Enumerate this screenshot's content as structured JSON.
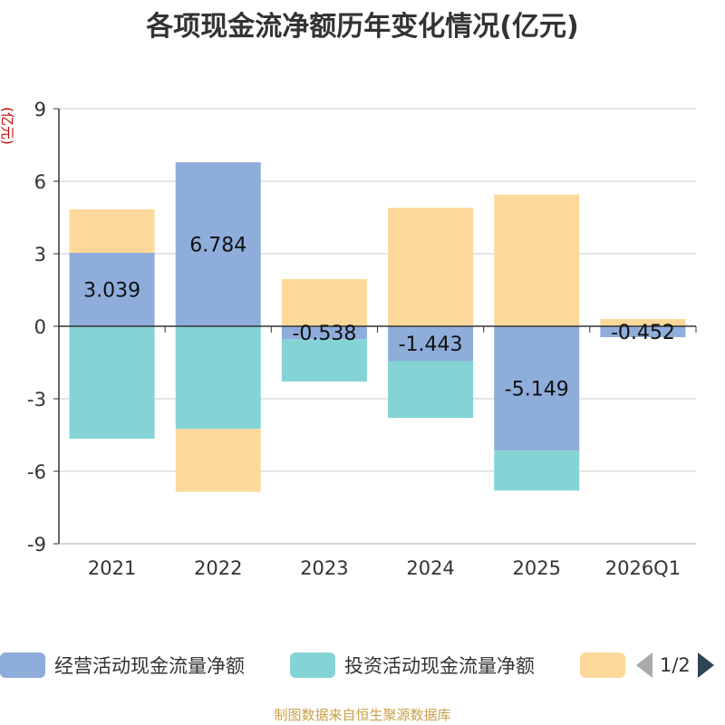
{
  "title": "各项现金流净额历年变化情况(亿元)",
  "source_note": "制图数据来自恒生聚源数据库",
  "legend": {
    "page_indicator": "1/2"
  },
  "colors": {
    "operating": "#8eaddb",
    "investing": "#84d4d6",
    "financing": "#fdd89b",
    "axis": "#333333",
    "grid": "#cccccc",
    "unit_label": "#cc0000"
  },
  "chart_data": {
    "type": "bar",
    "stacked": true,
    "unit_label": "(亿元)",
    "categories": [
      "2021",
      "2022",
      "2023",
      "2024",
      "2025",
      "2026Q1"
    ],
    "ylim": [
      -9,
      9
    ],
    "yticks": [
      9,
      6,
      3,
      0,
      -3,
      -6,
      -9
    ],
    "grid": true,
    "legend_position": "bottom",
    "series": [
      {
        "name": "经营活动现金流量净额",
        "values": [
          3.039,
          6.784,
          -0.538,
          -1.443,
          -5.149,
          -0.452
        ],
        "labeled": true
      },
      {
        "name": "投资活动现金流量净额",
        "values": [
          -4.65,
          -4.25,
          -1.75,
          -2.35,
          -1.65,
          0.0
        ]
      },
      {
        "values": [
          1.8,
          -2.6,
          1.95,
          4.9,
          5.45,
          0.3
        ]
      }
    ]
  }
}
